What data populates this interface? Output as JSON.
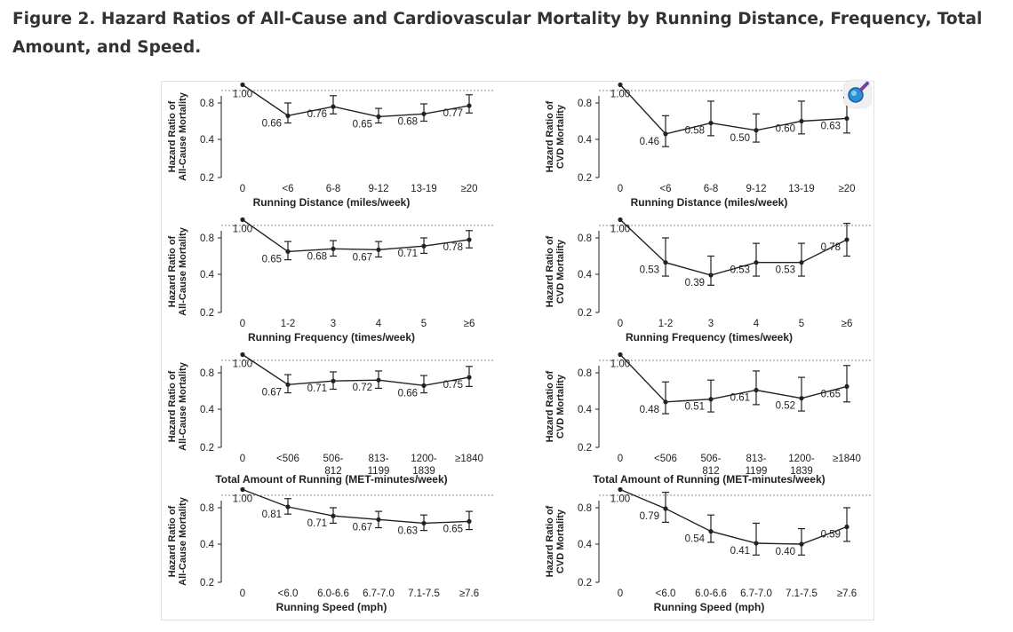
{
  "figure": {
    "caption": "Figure 2. Hazard Ratios of All-Cause and Cardiovascular Mortality by Running Distance, Frequency, Total Amount, and Speed."
  },
  "colors": {
    "line": "#222222",
    "reference": "#888888",
    "caption": "#333333",
    "axis": "#222222"
  },
  "icons": {
    "zoom": "magnifier-icon"
  },
  "chart_data": [
    {
      "type": "line",
      "row": 1,
      "col": 1,
      "ylabel": [
        "Hazard Ratio of",
        "All-Cause Mortality"
      ],
      "xlabel": "Running Distance (miles/week)",
      "categories": [
        "0",
        "<6",
        "6-8",
        "9-12",
        "13-19",
        "≥20"
      ],
      "yticks": [
        "0.8",
        "0.4",
        "0.2"
      ],
      "values": [
        1.0,
        0.66,
        0.76,
        0.65,
        0.68,
        0.77
      ],
      "labels": [
        "1.00",
        "0.66",
        "0.76",
        "0.65",
        "0.68",
        "0.77"
      ],
      "ci": [
        null,
        [
          0.58,
          0.8
        ],
        [
          0.68,
          0.88
        ],
        [
          0.58,
          0.74
        ],
        [
          0.6,
          0.79
        ],
        [
          0.69,
          0.89
        ]
      ]
    },
    {
      "type": "line",
      "row": 1,
      "col": 2,
      "ylabel": [
        "Hazard Ratio of",
        "CVD Mortality"
      ],
      "xlabel": "Running Distance (miles/week)",
      "categories": [
        "0",
        "<6",
        "6-8",
        "9-12",
        "13-19",
        "≥20"
      ],
      "yticks": [
        "0.8",
        "0.4",
        "0.2"
      ],
      "values": [
        1.0,
        0.46,
        0.58,
        0.5,
        0.6,
        0.63
      ],
      "labels": [
        "1.00",
        "0.46",
        "0.58",
        "0.50",
        "0.60",
        "0.63"
      ],
      "ci": [
        null,
        [
          0.32,
          0.66
        ],
        [
          0.44,
          0.82
        ],
        [
          0.37,
          0.68
        ],
        [
          0.46,
          0.82
        ],
        [
          0.47,
          0.86
        ]
      ]
    },
    {
      "type": "line",
      "row": 2,
      "col": 1,
      "ylabel": [
        "Hazard Ratio of",
        "All-Cause Mortality"
      ],
      "xlabel": "Running Frequency (times/week)",
      "categories": [
        "1-2",
        "3",
        "4",
        "5",
        "≥6"
      ],
      "leading_category": "0",
      "yticks": [
        "0.8",
        "0.4",
        "0.2"
      ],
      "values": [
        1.0,
        0.65,
        0.68,
        0.67,
        0.71,
        0.78
      ],
      "labels": [
        "1.00",
        "0.65",
        "0.68",
        "0.67",
        "0.71",
        "0.78"
      ],
      "ci": [
        null,
        [
          0.56,
          0.76
        ],
        [
          0.6,
          0.77
        ],
        [
          0.59,
          0.76
        ],
        [
          0.63,
          0.8
        ],
        [
          0.69,
          0.88
        ]
      ]
    },
    {
      "type": "line",
      "row": 2,
      "col": 2,
      "ylabel": [
        "Hazard Ratio of",
        "CVD Mortality"
      ],
      "xlabel": "Running Frequency (times/week)",
      "categories": [
        "1-2",
        "3",
        "4",
        "5",
        "≥6"
      ],
      "leading_category": "0",
      "yticks": [
        "0.8",
        "0.4",
        "0.2"
      ],
      "values": [
        1.0,
        0.53,
        0.39,
        0.53,
        0.53,
        0.78
      ],
      "labels": [
        "1.00",
        "0.53",
        "0.39",
        "0.53",
        "0.53",
        "0.78"
      ],
      "ci": [
        null,
        [
          0.38,
          0.8
        ],
        [
          0.28,
          0.6
        ],
        [
          0.38,
          0.74
        ],
        [
          0.38,
          0.74
        ],
        [
          0.6,
          0.96
        ]
      ]
    },
    {
      "type": "line",
      "row": 3,
      "col": 1,
      "ylabel": [
        "Hazard Ratio of",
        "All-Cause Mortality"
      ],
      "xlabel": "Total Amount of Running (MET-minutes/week)",
      "categories": [
        "0",
        "<506",
        "506-\n812",
        "813-\n1199",
        "1200-\n1839",
        "≥1840"
      ],
      "yticks": [
        "0.8",
        "0.4",
        "0.2"
      ],
      "values": [
        1.0,
        0.67,
        0.71,
        0.72,
        0.66,
        0.75
      ],
      "labels": [
        "1.00",
        "0.67",
        "0.71",
        "0.72",
        "0.66",
        "0.75"
      ],
      "ci": [
        null,
        [
          0.58,
          0.78
        ],
        [
          0.62,
          0.81
        ],
        [
          0.63,
          0.82
        ],
        [
          0.58,
          0.77
        ],
        [
          0.65,
          0.87
        ]
      ]
    },
    {
      "type": "line",
      "row": 3,
      "col": 2,
      "ylabel": [
        "Hazard Ratio of",
        "CVD Mortality"
      ],
      "xlabel": "Total Amount of Running (MET-minutes/week)",
      "categories": [
        "0",
        "<506",
        "506-\n812",
        "813-\n1199",
        "1200-\n1839",
        "≥1840"
      ],
      "yticks": [
        "0.8",
        "0.4",
        "0.2"
      ],
      "values": [
        1.0,
        0.48,
        0.51,
        0.61,
        0.52,
        0.65
      ],
      "labels": [
        "1.00",
        "0.48",
        "0.51",
        "0.61",
        "0.52",
        "0.65"
      ],
      "ci": [
        null,
        [
          0.35,
          0.7
        ],
        [
          0.37,
          0.72
        ],
        [
          0.45,
          0.82
        ],
        [
          0.38,
          0.75
        ],
        [
          0.48,
          0.88
        ]
      ]
    },
    {
      "type": "line",
      "row": 4,
      "col": 1,
      "ylabel": [
        "Hazard Ratio of",
        "All-Cause Mortality"
      ],
      "xlabel": "Running Speed (mph)",
      "categories": [
        "0",
        "<6.0",
        "6.0-6.6",
        "6.7-7.0",
        "7.1-7.5",
        "≥7.6"
      ],
      "yticks": [
        "0.8",
        "0.4",
        "0.2"
      ],
      "values": [
        1.0,
        0.81,
        0.71,
        0.67,
        0.63,
        0.65
      ],
      "labels": [
        "1.00",
        "0.81",
        "0.71",
        "0.67",
        "0.63",
        "0.65"
      ],
      "ci": [
        null,
        [
          0.73,
          0.9
        ],
        [
          0.63,
          0.8
        ],
        [
          0.58,
          0.76
        ],
        [
          0.55,
          0.72
        ],
        [
          0.56,
          0.76
        ]
      ]
    },
    {
      "type": "line",
      "row": 4,
      "col": 2,
      "ylabel": [
        "Hazard Ratio of",
        "CVD Mortality"
      ],
      "xlabel": "Running Speed (mph)",
      "categories": [
        "0",
        "<6.0",
        "6.0-6.6",
        "6.7-7.0",
        "7.1-7.5",
        "≥7.6"
      ],
      "yticks": [
        "0.8",
        "0.4",
        "0.2"
      ],
      "values": [
        1.0,
        0.79,
        0.54,
        0.41,
        0.4,
        0.59
      ],
      "labels": [
        "1.00",
        "0.79",
        "0.54",
        "0.41",
        "0.40",
        "0.59"
      ],
      "ci": [
        null,
        [
          0.64,
          0.97
        ],
        [
          0.42,
          0.72
        ],
        [
          0.28,
          0.63
        ],
        [
          0.28,
          0.57
        ],
        [
          0.43,
          0.8
        ]
      ]
    }
  ]
}
